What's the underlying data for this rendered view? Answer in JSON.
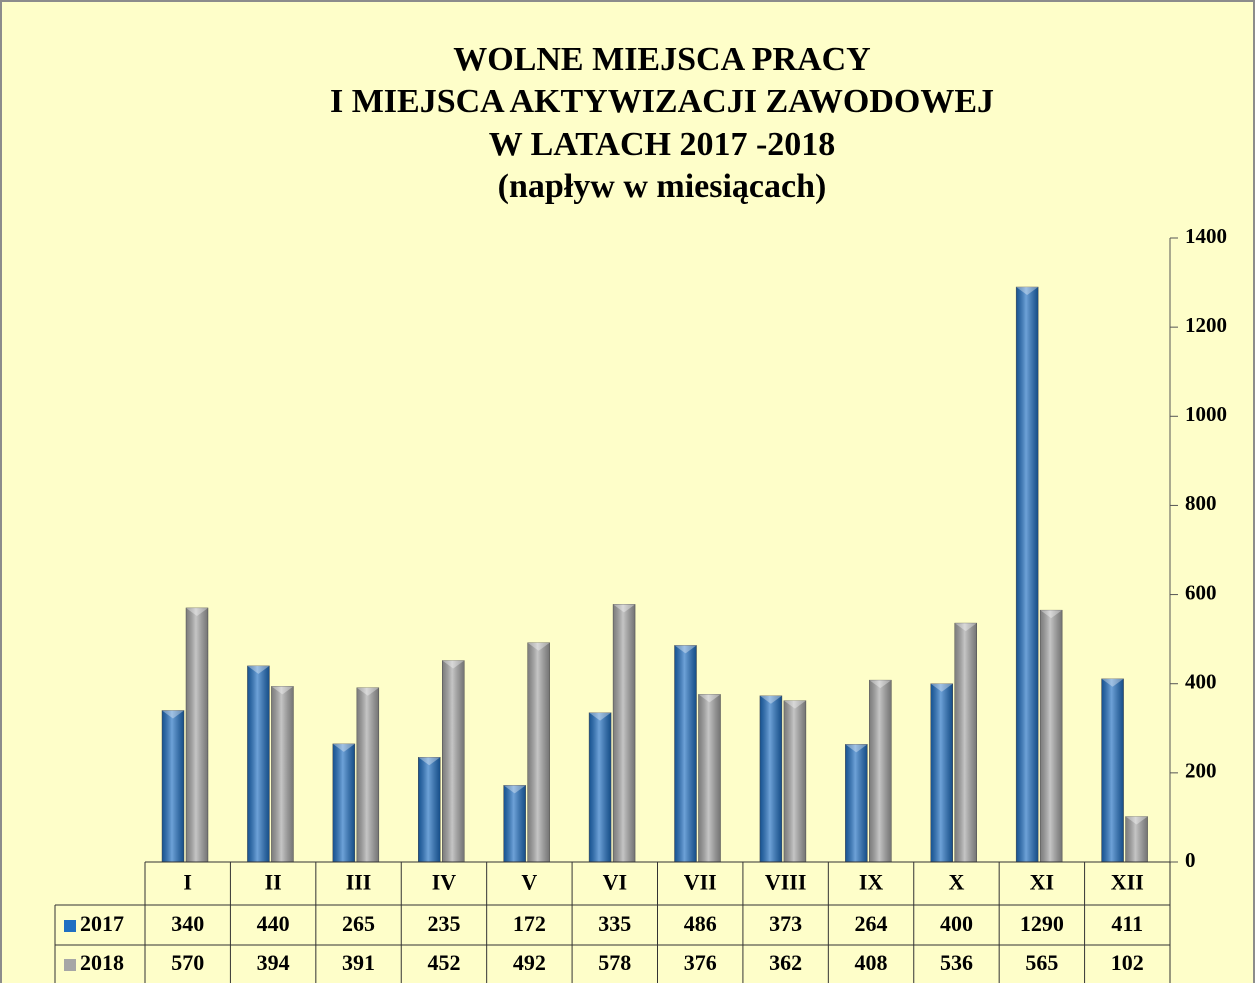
{
  "chart_data": {
    "type": "bar",
    "title_lines": [
      "WOLNE MIEJSCA PRACY",
      "I MIEJSCA AKTYWIZACJI ZAWODOWEJ",
      "W LATACH 2017 -2018"
    ],
    "subtitle": "(napływ w miesiącach)",
    "categories": [
      "I",
      "II",
      "III",
      "IV",
      "V",
      "VI",
      "VII",
      "VIII",
      "IX",
      "X",
      "XI",
      "XII"
    ],
    "series": [
      {
        "name": "2017",
        "color": "#1f6fc2",
        "values": [
          340,
          440,
          265,
          235,
          172,
          335,
          486,
          373,
          264,
          400,
          1290,
          411
        ]
      },
      {
        "name": "2018",
        "color": "#a6a6a6",
        "values": [
          570,
          394,
          391,
          452,
          492,
          578,
          376,
          362,
          408,
          536,
          565,
          102
        ]
      }
    ],
    "ylim": [
      0,
      1400
    ],
    "yticks": [
      0,
      200,
      400,
      600,
      800,
      1000,
      1200,
      1400
    ],
    "grid": false,
    "data_table": true
  }
}
